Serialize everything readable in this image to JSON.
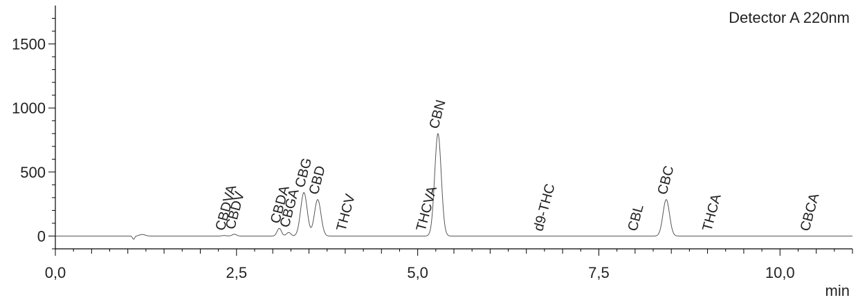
{
  "chart_data": {
    "type": "line",
    "title": "",
    "detector_label": "Detector A 220nm",
    "xlabel": "min",
    "ylabel": "",
    "xlim": [
      0,
      11.0
    ],
    "ylim": [
      -100,
      1800
    ],
    "x_major_ticks": [
      0,
      2.5,
      5.0,
      7.5,
      10.0
    ],
    "x_tick_labels": [
      "0,0",
      "2,5",
      "5,0",
      "7,5",
      "10,0"
    ],
    "y_major_ticks": [
      0,
      500,
      1000,
      1500
    ],
    "y_tick_labels": [
      "0",
      "500",
      "1000",
      "1500"
    ],
    "grid": false,
    "line_color": "#555555",
    "peaks": [
      {
        "name": "CBDVA",
        "rt": 2.33,
        "height": 4
      },
      {
        "name": "CBDV",
        "rt": 2.47,
        "height": 14
      },
      {
        "name": "CBDA",
        "rt": 3.09,
        "height": 60
      },
      {
        "name": "CBGA",
        "rt": 3.22,
        "height": 28
      },
      {
        "name": "CBG",
        "rt": 3.43,
        "height": 340
      },
      {
        "name": "CBD",
        "rt": 3.62,
        "height": 285
      },
      {
        "name": "THCV",
        "rt": 4.0,
        "height": 0
      },
      {
        "name": "THCVA",
        "rt": 5.1,
        "height": 0
      },
      {
        "name": "CBN",
        "rt": 5.28,
        "height": 800
      },
      {
        "name": "d9-THC",
        "rt": 6.72,
        "height": 0
      },
      {
        "name": "CBL",
        "rt": 8.02,
        "height": 0
      },
      {
        "name": "CBC",
        "rt": 8.43,
        "height": 285
      },
      {
        "name": "THCA",
        "rt": 9.05,
        "height": 0
      },
      {
        "name": "CBCA",
        "rt": 10.4,
        "height": 0
      }
    ]
  }
}
